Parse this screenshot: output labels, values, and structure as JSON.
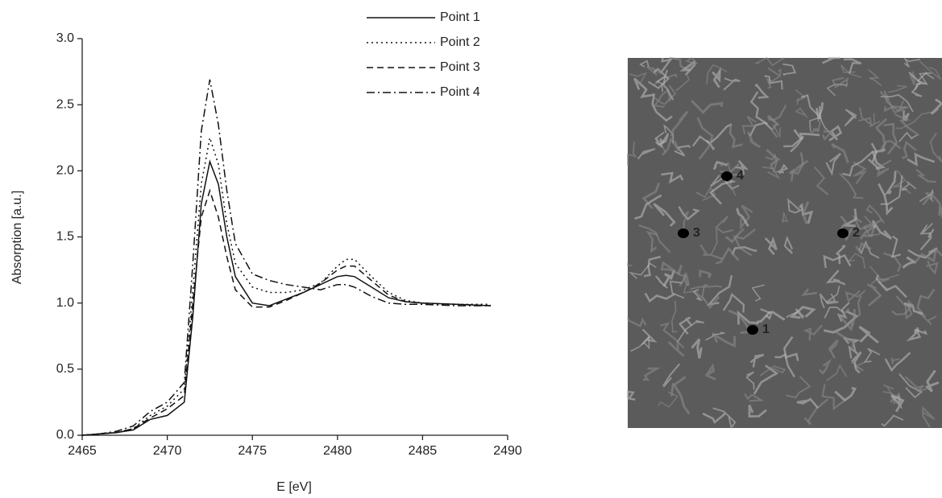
{
  "chart_data": {
    "type": "line",
    "x_label": "E [eV]",
    "y_label": "Absorption [a.u.]",
    "x": [
      2465,
      2466,
      2467,
      2468,
      2469,
      2470,
      2471,
      2471.5,
      2472,
      2472.5,
      2473,
      2473.5,
      2474,
      2475,
      2476,
      2477,
      2478,
      2479,
      2480,
      2480.5,
      2481,
      2482,
      2483,
      2484,
      2485,
      2487,
      2489
    ],
    "series": [
      {
        "name": "Point 1",
        "color": "#111111",
        "line_style": "solid",
        "values": [
          0.0,
          0.01,
          0.02,
          0.04,
          0.12,
          0.15,
          0.25,
          0.9,
          1.75,
          2.07,
          1.9,
          1.5,
          1.2,
          1.0,
          0.98,
          1.03,
          1.08,
          1.14,
          1.2,
          1.21,
          1.2,
          1.12,
          1.04,
          1.01,
          1.0,
          0.99,
          0.98
        ]
      },
      {
        "name": "Point 2",
        "color": "#111111",
        "line_style": "dotted",
        "values": [
          0.0,
          0.01,
          0.02,
          0.05,
          0.15,
          0.22,
          0.35,
          1.1,
          1.9,
          2.25,
          2.05,
          1.6,
          1.3,
          1.12,
          1.08,
          1.08,
          1.1,
          1.15,
          1.28,
          1.33,
          1.33,
          1.2,
          1.08,
          1.02,
          1.0,
          0.99,
          0.99
        ]
      },
      {
        "name": "Point 3",
        "color": "#111111",
        "line_style": "dashed",
        "values": [
          0.0,
          0.01,
          0.02,
          0.05,
          0.13,
          0.2,
          0.3,
          1.0,
          1.65,
          1.85,
          1.65,
          1.35,
          1.1,
          0.97,
          0.97,
          1.02,
          1.08,
          1.15,
          1.25,
          1.28,
          1.28,
          1.17,
          1.06,
          1.01,
          1.0,
          0.99,
          0.98
        ]
      },
      {
        "name": "Point 4",
        "color": "#111111",
        "line_style": "dashdot",
        "values": [
          0.0,
          0.01,
          0.03,
          0.07,
          0.18,
          0.25,
          0.4,
          1.3,
          2.3,
          2.69,
          2.35,
          1.85,
          1.45,
          1.22,
          1.17,
          1.14,
          1.12,
          1.1,
          1.14,
          1.14,
          1.12,
          1.05,
          1.0,
          0.99,
          0.99,
          0.98,
          0.98
        ]
      }
    ],
    "xlim": [
      2465,
      2490
    ],
    "xticks": [
      2465,
      2470,
      2475,
      2480,
      2485,
      2490
    ],
    "ylim": [
      0,
      3
    ],
    "yticks": [
      {
        "value": 0,
        "label": "0.0"
      },
      {
        "value": 0.5,
        "label": "0.5"
      },
      {
        "value": 1,
        "label": "1.0"
      },
      {
        "value": 1.5,
        "label": "1.5"
      },
      {
        "value": 2,
        "label": "2.0"
      },
      {
        "value": 2.5,
        "label": "2.5"
      },
      {
        "value": 3,
        "label": "3.0"
      }
    ],
    "legend": "top-right",
    "grid": false
  },
  "image": {
    "point_labels": [
      "1",
      "2",
      "3",
      "4"
    ]
  }
}
